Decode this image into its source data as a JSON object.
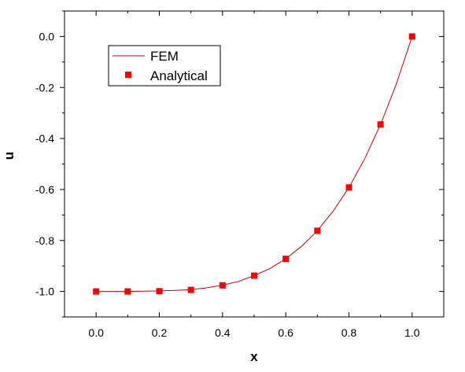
{
  "chart_data": {
    "type": "line",
    "title": "",
    "xlabel": "x",
    "ylabel": "u",
    "xlim": [
      -0.1,
      1.1
    ],
    "ylim": [
      -1.1,
      0.1
    ],
    "xticks": [
      0.0,
      0.2,
      0.4,
      0.6,
      0.8,
      1.0
    ],
    "xtick_labels": [
      "0.0",
      "0.2",
      "0.4",
      "0.6",
      "0.8",
      "1.0"
    ],
    "yticks": [
      0.0,
      -0.2,
      -0.4,
      -0.6,
      -0.8,
      -1.0
    ],
    "ytick_labels": [
      "0.0",
      "-0.2",
      "-0.4",
      "-0.6",
      "-0.8",
      "-1.0"
    ],
    "grid": false,
    "legend_position": "top-left",
    "series": [
      {
        "name": "FEM",
        "style": "line",
        "color": "#cc0000",
        "x": [
          0.0,
          0.05,
          0.1,
          0.15,
          0.2,
          0.25,
          0.3,
          0.35,
          0.4,
          0.45,
          0.5,
          0.55,
          0.6,
          0.65,
          0.7,
          0.75,
          0.8,
          0.85,
          0.9,
          0.95,
          1.0
        ],
        "y": [
          -1.0,
          -1.0,
          -1.0,
          -0.999,
          -0.998,
          -0.996,
          -0.993,
          -0.986,
          -0.975,
          -0.961,
          -0.938,
          -0.91,
          -0.872,
          -0.823,
          -0.762,
          -0.685,
          -0.592,
          -0.479,
          -0.345,
          -0.186,
          0.0
        ]
      },
      {
        "name": "Analytical",
        "style": "markers",
        "marker": "square",
        "color": "#ff0000",
        "x": [
          0.0,
          0.1,
          0.2,
          0.3,
          0.4,
          0.5,
          0.6,
          0.7,
          0.8,
          0.9,
          1.0
        ],
        "y": [
          -1.0,
          -1.0,
          -0.999,
          -0.994,
          -0.976,
          -0.938,
          -0.872,
          -0.762,
          -0.592,
          -0.345,
          0.0
        ]
      }
    ]
  }
}
